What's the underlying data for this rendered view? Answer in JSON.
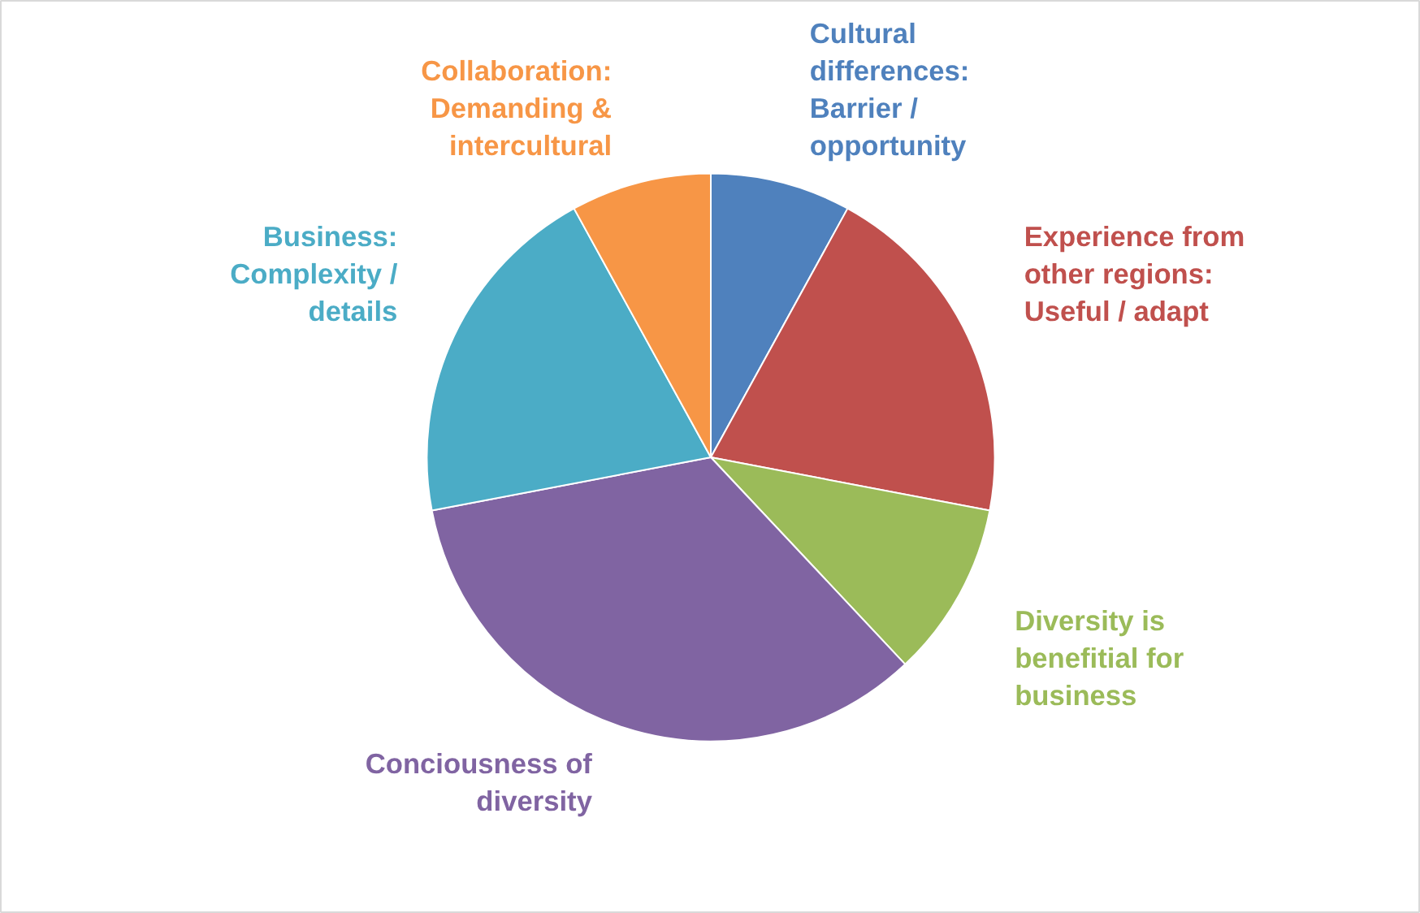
{
  "chart_data": {
    "type": "pie",
    "categories": [
      "Cultural differences: Barrier / opportunity",
      "Experience from other regions: Useful / adapt",
      "Diversity is benefitial for business",
      "Conciousness of diversity",
      "Business: Complexity / details",
      "Collaboration: Demanding & intercultural"
    ],
    "values": [
      8,
      20,
      10,
      34,
      20,
      8
    ],
    "colors": [
      "#4f81bd",
      "#c0504d",
      "#9bbb59",
      "#8064a2",
      "#4bacc6",
      "#f79646"
    ]
  }
}
